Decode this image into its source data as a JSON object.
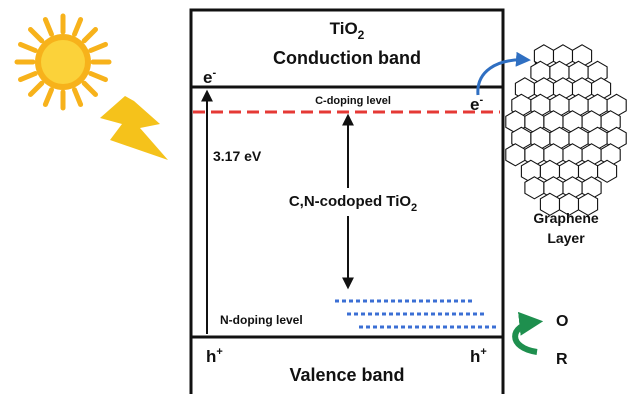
{
  "title": {
    "main": "TiO",
    "sub": "2"
  },
  "conduction_band": {
    "label": "Conduction band"
  },
  "valence_band": {
    "label": "Valence band"
  },
  "electron": {
    "base": "e",
    "sup": "-"
  },
  "hole": {
    "base": "h",
    "sup": "+"
  },
  "c_doping": {
    "label": "C-doping level"
  },
  "n_doping": {
    "label": "N-doping level"
  },
  "band_gap": {
    "label": "3.17 eV"
  },
  "material": {
    "main": "C,N-codoped TiO",
    "sub": "2"
  },
  "graphene": {
    "line1": "Graphene",
    "line2": "Layer"
  },
  "redox": {
    "oxidized": "O",
    "reduced": "R"
  },
  "colors": {
    "outline": "#111111",
    "c_doping_line": "#e53935",
    "n_doping_line": "#3b6fd4",
    "electron_transfer_arrow": "#2f6fc2",
    "redox_arrow": "#1e8f4e",
    "sun": "#f7b21b",
    "sun_core": "#fbd23a",
    "lightning": "#f5c21b"
  }
}
